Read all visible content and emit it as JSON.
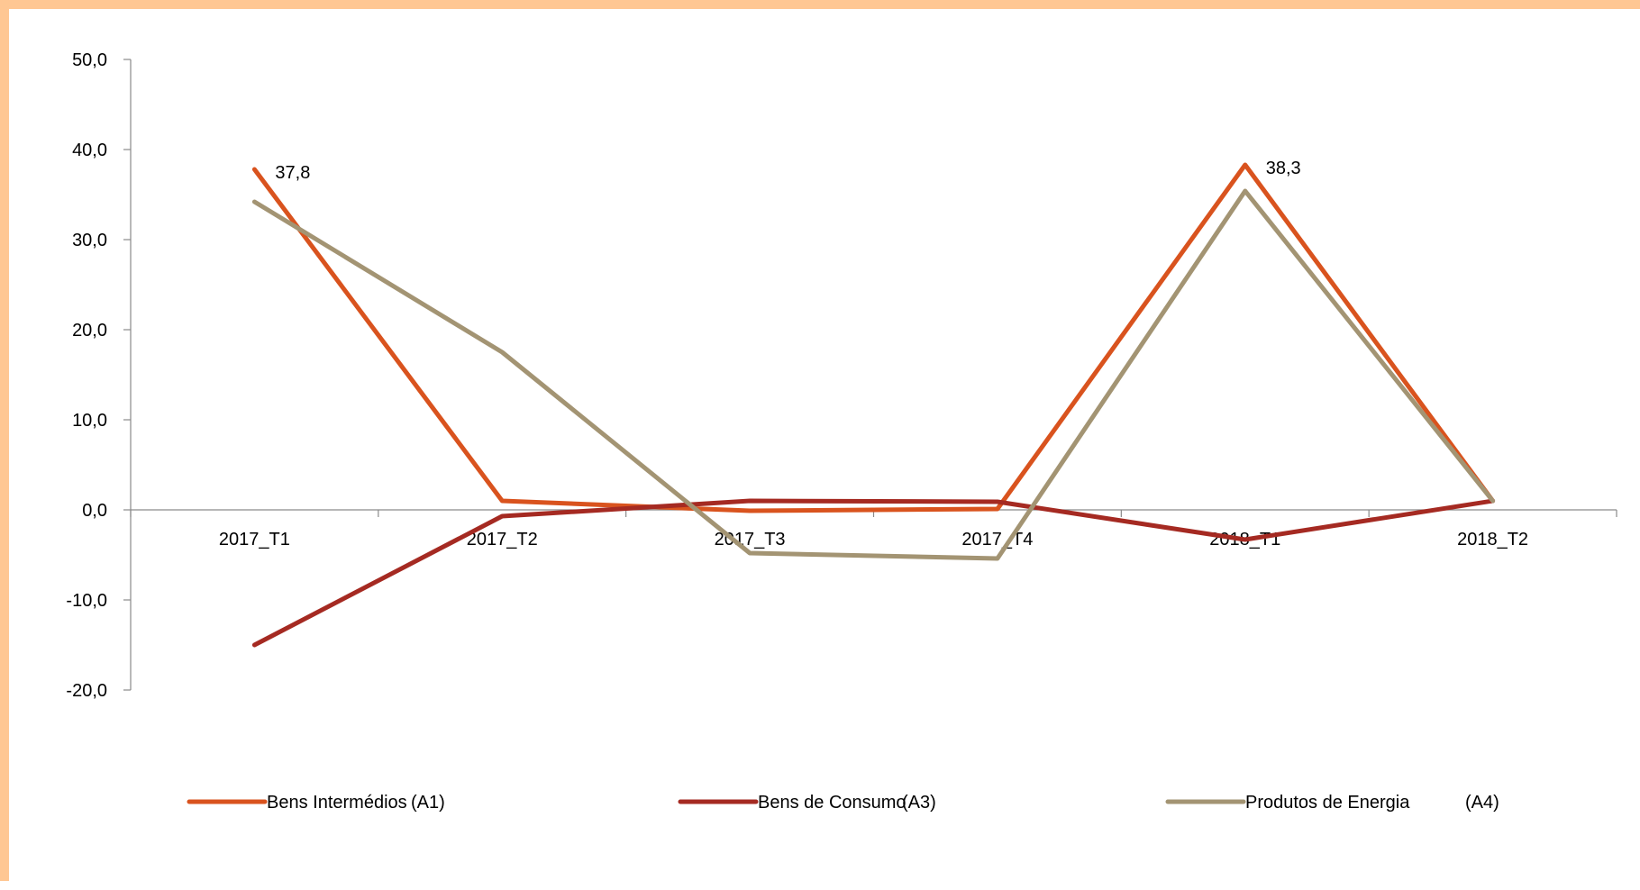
{
  "chart_data": {
    "type": "line",
    "categories": [
      "2017_T1",
      "2017_T2",
      "2017_T3",
      "2017_T4",
      "2018_T1",
      "2018_T2"
    ],
    "ylim": [
      -20,
      50
    ],
    "yticks": [
      "50,0",
      "40,0",
      "30,0",
      "20,0",
      "10,0",
      "0,0",
      "-10,0",
      "-20,0"
    ],
    "grid": false,
    "legend": "bottom",
    "series": [
      {
        "name": "Bens Intermédios",
        "code": "(A1)",
        "color": "#d9531e",
        "values": [
          37.8,
          1.0,
          -0.1,
          0.1,
          38.3,
          1.0
        ],
        "labels": [
          "37,8",
          "",
          "",
          "",
          "38,3",
          ""
        ]
      },
      {
        "name": "Bens de Consumo",
        "code": "(A3)",
        "color": "#a52a22",
        "values": [
          -15.0,
          -0.7,
          1.0,
          0.9,
          -3.3,
          1.0
        ],
        "labels": [
          "",
          "",
          "",
          "",
          "",
          ""
        ]
      },
      {
        "name": "Produtos de Energia",
        "code": "(A4)",
        "color": "#a39473",
        "values": [
          34.2,
          17.5,
          -4.8,
          -5.4,
          35.4,
          1.0
        ],
        "labels": [
          "",
          "",
          "",
          "",
          "",
          ""
        ]
      }
    ]
  }
}
